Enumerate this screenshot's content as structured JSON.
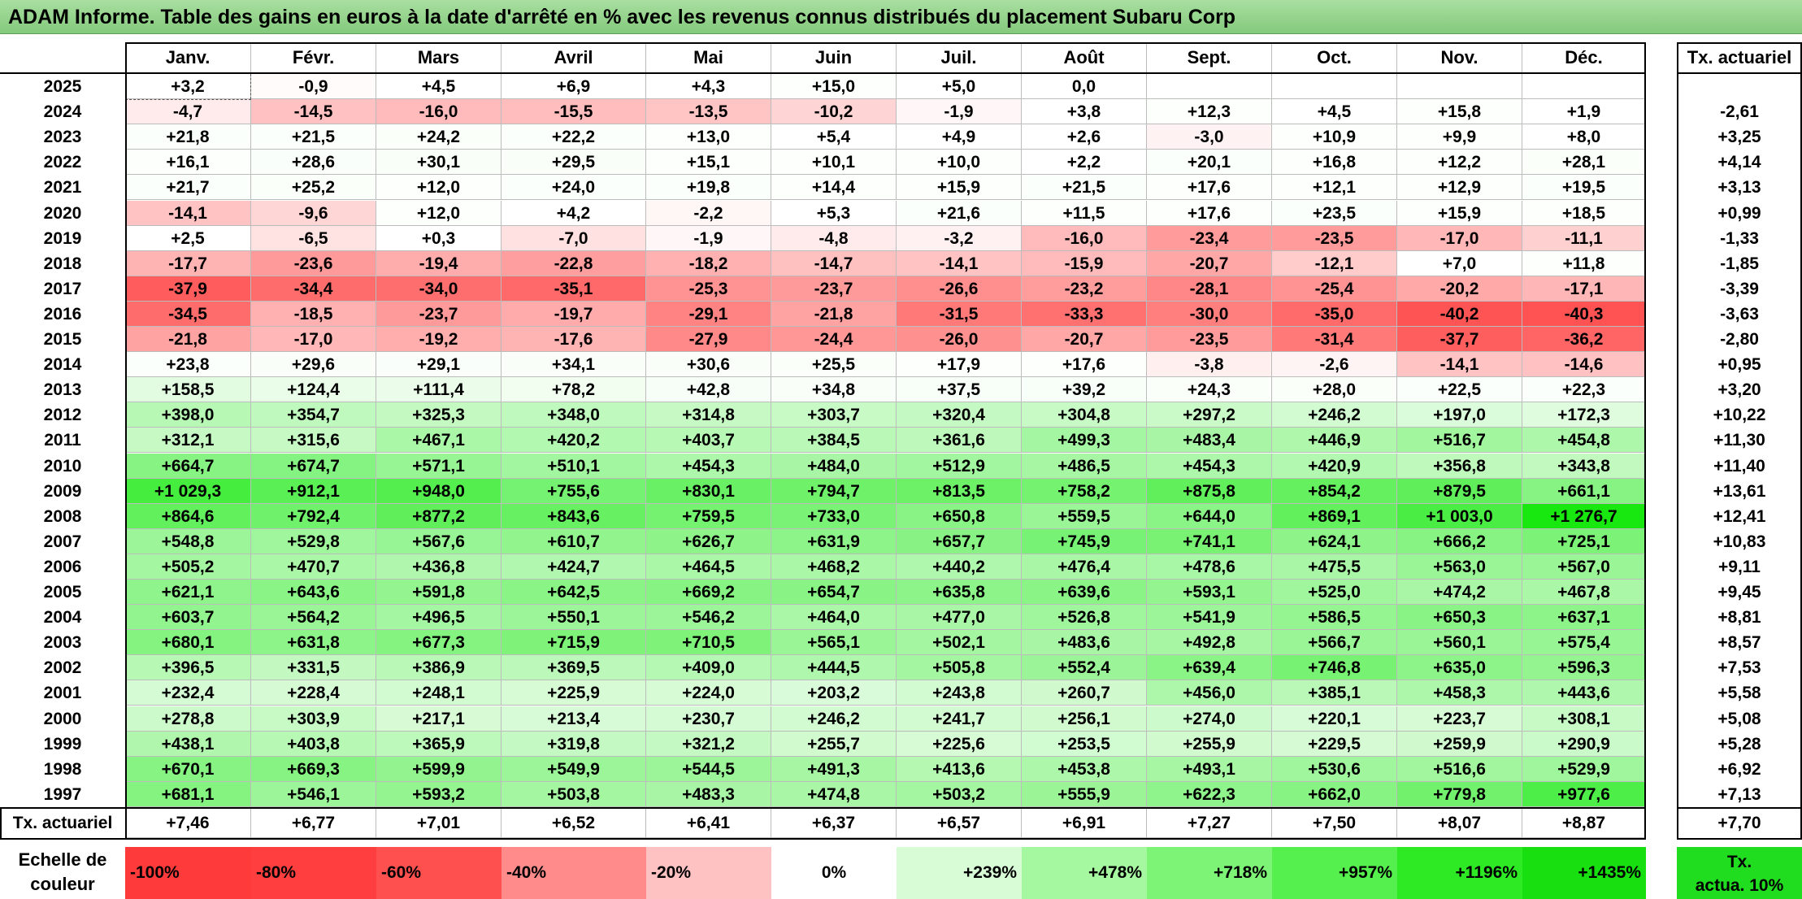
{
  "title": "ADAM Informe. Table des gains en euros à la date d'arrêté en % avec les revenus connus distribués du placement Subaru Corp",
  "months": [
    "Janv.",
    "Févr.",
    "Mars",
    "Avril",
    "Mai",
    "Juin",
    "Juil.",
    "Août",
    "Sept.",
    "Oct.",
    "Nov.",
    "Déc."
  ],
  "tx_header": "Tx. actuariel",
  "rows": [
    {
      "year": "2025",
      "values": [
        "+3,2",
        "-0,9",
        "+4,5",
        "+6,9",
        "+4,3",
        "+15,0",
        "+5,0",
        "0,0",
        "",
        "",
        "",
        ""
      ],
      "tx": ""
    },
    {
      "year": "2024",
      "values": [
        "-4,7",
        "-14,5",
        "-16,0",
        "-15,5",
        "-13,5",
        "-10,2",
        "-1,9",
        "+3,8",
        "+12,3",
        "+4,5",
        "+15,8",
        "+1,9"
      ],
      "tx": "-2,61"
    },
    {
      "year": "2023",
      "values": [
        "+21,8",
        "+21,5",
        "+24,2",
        "+22,2",
        "+13,0",
        "+5,4",
        "+4,9",
        "+2,6",
        "-3,0",
        "+10,9",
        "+9,9",
        "+8,0"
      ],
      "tx": "+3,25"
    },
    {
      "year": "2022",
      "values": [
        "+16,1",
        "+28,6",
        "+30,1",
        "+29,5",
        "+15,1",
        "+10,1",
        "+10,0",
        "+2,2",
        "+20,1",
        "+16,8",
        "+12,2",
        "+28,1"
      ],
      "tx": "+4,14"
    },
    {
      "year": "2021",
      "values": [
        "+21,7",
        "+25,2",
        "+12,0",
        "+24,0",
        "+19,8",
        "+14,4",
        "+15,9",
        "+21,5",
        "+17,6",
        "+12,1",
        "+12,9",
        "+19,5"
      ],
      "tx": "+3,13"
    },
    {
      "year": "2020",
      "values": [
        "-14,1",
        "-9,6",
        "+12,0",
        "+4,2",
        "-2,2",
        "+5,3",
        "+21,6",
        "+11,5",
        "+17,6",
        "+23,5",
        "+15,9",
        "+18,5"
      ],
      "tx": "+0,99"
    },
    {
      "year": "2019",
      "values": [
        "+2,5",
        "-6,5",
        "+0,3",
        "-7,0",
        "-1,9",
        "-4,8",
        "-3,2",
        "-16,0",
        "-23,4",
        "-23,5",
        "-17,0",
        "-11,1"
      ],
      "tx": "-1,33"
    },
    {
      "year": "2018",
      "values": [
        "-17,7",
        "-23,6",
        "-19,4",
        "-22,8",
        "-18,2",
        "-14,7",
        "-14,1",
        "-15,9",
        "-20,7",
        "-12,1",
        "+7,0",
        "+11,8"
      ],
      "tx": "-1,85"
    },
    {
      "year": "2017",
      "values": [
        "-37,9",
        "-34,4",
        "-34,0",
        "-35,1",
        "-25,3",
        "-23,7",
        "-26,6",
        "-23,2",
        "-28,1",
        "-25,4",
        "-20,2",
        "-17,1"
      ],
      "tx": "-3,39"
    },
    {
      "year": "2016",
      "values": [
        "-34,5",
        "-18,5",
        "-23,7",
        "-19,7",
        "-29,1",
        "-21,8",
        "-31,5",
        "-33,3",
        "-30,0",
        "-35,0",
        "-40,2",
        "-40,3"
      ],
      "tx": "-3,63"
    },
    {
      "year": "2015",
      "values": [
        "-21,8",
        "-17,0",
        "-19,2",
        "-17,6",
        "-27,9",
        "-24,4",
        "-26,0",
        "-20,7",
        "-23,5",
        "-31,4",
        "-37,7",
        "-36,2"
      ],
      "tx": "-2,80"
    },
    {
      "year": "2014",
      "values": [
        "+23,8",
        "+29,6",
        "+29,1",
        "+34,1",
        "+30,6",
        "+25,5",
        "+17,9",
        "+17,6",
        "-3,8",
        "-2,6",
        "-14,1",
        "-14,6"
      ],
      "tx": "+0,95"
    },
    {
      "year": "2013",
      "values": [
        "+158,5",
        "+124,4",
        "+111,4",
        "+78,2",
        "+42,8",
        "+34,8",
        "+37,5",
        "+39,2",
        "+24,3",
        "+28,0",
        "+22,5",
        "+22,3"
      ],
      "tx": "+3,20"
    },
    {
      "year": "2012",
      "values": [
        "+398,0",
        "+354,7",
        "+325,3",
        "+348,0",
        "+314,8",
        "+303,7",
        "+320,4",
        "+304,8",
        "+297,2",
        "+246,2",
        "+197,0",
        "+172,3"
      ],
      "tx": "+10,22"
    },
    {
      "year": "2011",
      "values": [
        "+312,1",
        "+315,6",
        "+467,1",
        "+420,2",
        "+403,7",
        "+384,5",
        "+361,6",
        "+499,3",
        "+483,4",
        "+446,9",
        "+516,7",
        "+454,8"
      ],
      "tx": "+11,30"
    },
    {
      "year": "2010",
      "values": [
        "+664,7",
        "+674,7",
        "+571,1",
        "+510,1",
        "+454,3",
        "+484,0",
        "+512,9",
        "+486,5",
        "+454,3",
        "+420,9",
        "+356,8",
        "+343,8"
      ],
      "tx": "+11,40"
    },
    {
      "year": "2009",
      "values": [
        "+1 029,3",
        "+912,1",
        "+948,0",
        "+755,6",
        "+830,1",
        "+794,7",
        "+813,5",
        "+758,2",
        "+875,8",
        "+854,2",
        "+879,5",
        "+661,1"
      ],
      "tx": "+13,61"
    },
    {
      "year": "2008",
      "values": [
        "+864,6",
        "+792,4",
        "+877,2",
        "+843,6",
        "+759,5",
        "+733,0",
        "+650,8",
        "+559,5",
        "+644,0",
        "+869,1",
        "+1 003,0",
        "+1 276,7"
      ],
      "tx": "+12,41"
    },
    {
      "year": "2007",
      "values": [
        "+548,8",
        "+529,8",
        "+567,6",
        "+610,7",
        "+626,7",
        "+631,9",
        "+657,7",
        "+745,9",
        "+741,1",
        "+624,1",
        "+666,2",
        "+725,1"
      ],
      "tx": "+10,83"
    },
    {
      "year": "2006",
      "values": [
        "+505,2",
        "+470,7",
        "+436,8",
        "+424,7",
        "+464,5",
        "+468,2",
        "+440,2",
        "+476,4",
        "+478,6",
        "+475,5",
        "+563,0",
        "+567,0"
      ],
      "tx": "+9,11"
    },
    {
      "year": "2005",
      "values": [
        "+621,1",
        "+643,6",
        "+591,8",
        "+642,5",
        "+669,2",
        "+654,7",
        "+635,8",
        "+639,6",
        "+593,1",
        "+525,0",
        "+474,2",
        "+467,8"
      ],
      "tx": "+9,45"
    },
    {
      "year": "2004",
      "values": [
        "+603,7",
        "+564,2",
        "+496,5",
        "+550,1",
        "+546,2",
        "+464,0",
        "+477,0",
        "+526,8",
        "+541,9",
        "+586,5",
        "+650,3",
        "+637,1"
      ],
      "tx": "+8,81"
    },
    {
      "year": "2003",
      "values": [
        "+680,1",
        "+631,8",
        "+677,3",
        "+715,9",
        "+710,5",
        "+565,1",
        "+502,1",
        "+483,6",
        "+492,8",
        "+566,7",
        "+560,1",
        "+575,4"
      ],
      "tx": "+8,57"
    },
    {
      "year": "2002",
      "values": [
        "+396,5",
        "+331,5",
        "+386,9",
        "+369,5",
        "+409,0",
        "+444,5",
        "+505,8",
        "+552,4",
        "+639,4",
        "+746,8",
        "+635,0",
        "+596,3"
      ],
      "tx": "+7,53"
    },
    {
      "year": "2001",
      "values": [
        "+232,4",
        "+228,4",
        "+248,1",
        "+225,9",
        "+224,0",
        "+203,2",
        "+243,8",
        "+260,7",
        "+456,0",
        "+385,1",
        "+458,3",
        "+443,6"
      ],
      "tx": "+5,58"
    },
    {
      "year": "2000",
      "values": [
        "+278,8",
        "+303,9",
        "+217,1",
        "+213,4",
        "+230,7",
        "+246,2",
        "+241,7",
        "+256,1",
        "+274,0",
        "+220,1",
        "+223,7",
        "+308,1"
      ],
      "tx": "+5,08"
    },
    {
      "year": "1999",
      "values": [
        "+438,1",
        "+403,8",
        "+365,9",
        "+319,8",
        "+321,2",
        "+255,7",
        "+225,6",
        "+253,5",
        "+255,9",
        "+229,5",
        "+259,9",
        "+290,9"
      ],
      "tx": "+5,28"
    },
    {
      "year": "1998",
      "values": [
        "+670,1",
        "+669,3",
        "+599,9",
        "+549,9",
        "+544,5",
        "+491,3",
        "+413,6",
        "+453,8",
        "+493,1",
        "+530,6",
        "+516,6",
        "+529,9"
      ],
      "tx": "+6,92"
    },
    {
      "year": "1997",
      "values": [
        "+681,1",
        "+546,1",
        "+593,2",
        "+503,8",
        "+483,3",
        "+474,8",
        "+503,2",
        "+555,9",
        "+622,3",
        "+662,0",
        "+779,8",
        "+977,6"
      ],
      "tx": "+7,13"
    }
  ],
  "footer": {
    "label": "Tx. actuariel",
    "values": [
      "+7,46",
      "+6,77",
      "+7,01",
      "+6,52",
      "+6,41",
      "+6,37",
      "+6,57",
      "+6,91",
      "+7,27",
      "+7,50",
      "+8,07",
      "+8,87"
    ],
    "tx": "+7,70"
  },
  "scale": {
    "label_line1": "Echelle de",
    "label_line2": "couleur",
    "items": [
      {
        "text": "-100%",
        "color": "#ff3a3a",
        "align": "left"
      },
      {
        "text": "-80%",
        "color": "#ff3f3f",
        "align": "left"
      },
      {
        "text": "-60%",
        "color": "#ff5050",
        "align": "left"
      },
      {
        "text": "-40%",
        "color": "#ff8b8b",
        "align": "left"
      },
      {
        "text": "-20%",
        "color": "#ffc2c2",
        "align": "left"
      },
      {
        "text": "0%",
        "color": "#ffffff",
        "align": "center"
      },
      {
        "text": "+239%",
        "color": "#d8fdd6",
        "align": "right"
      },
      {
        "text": "+478%",
        "color": "#a6f8a0",
        "align": "right"
      },
      {
        "text": "+718%",
        "color": "#7ef477",
        "align": "right"
      },
      {
        "text": "+957%",
        "color": "#55ef4e",
        "align": "right"
      },
      {
        "text": "+1196%",
        "color": "#2dea25",
        "align": "right"
      },
      {
        "text": "+1435%",
        "color": "#18e010",
        "align": "right"
      }
    ],
    "last_line1": "Tx.",
    "last_line2": "actua. 10%"
  }
}
